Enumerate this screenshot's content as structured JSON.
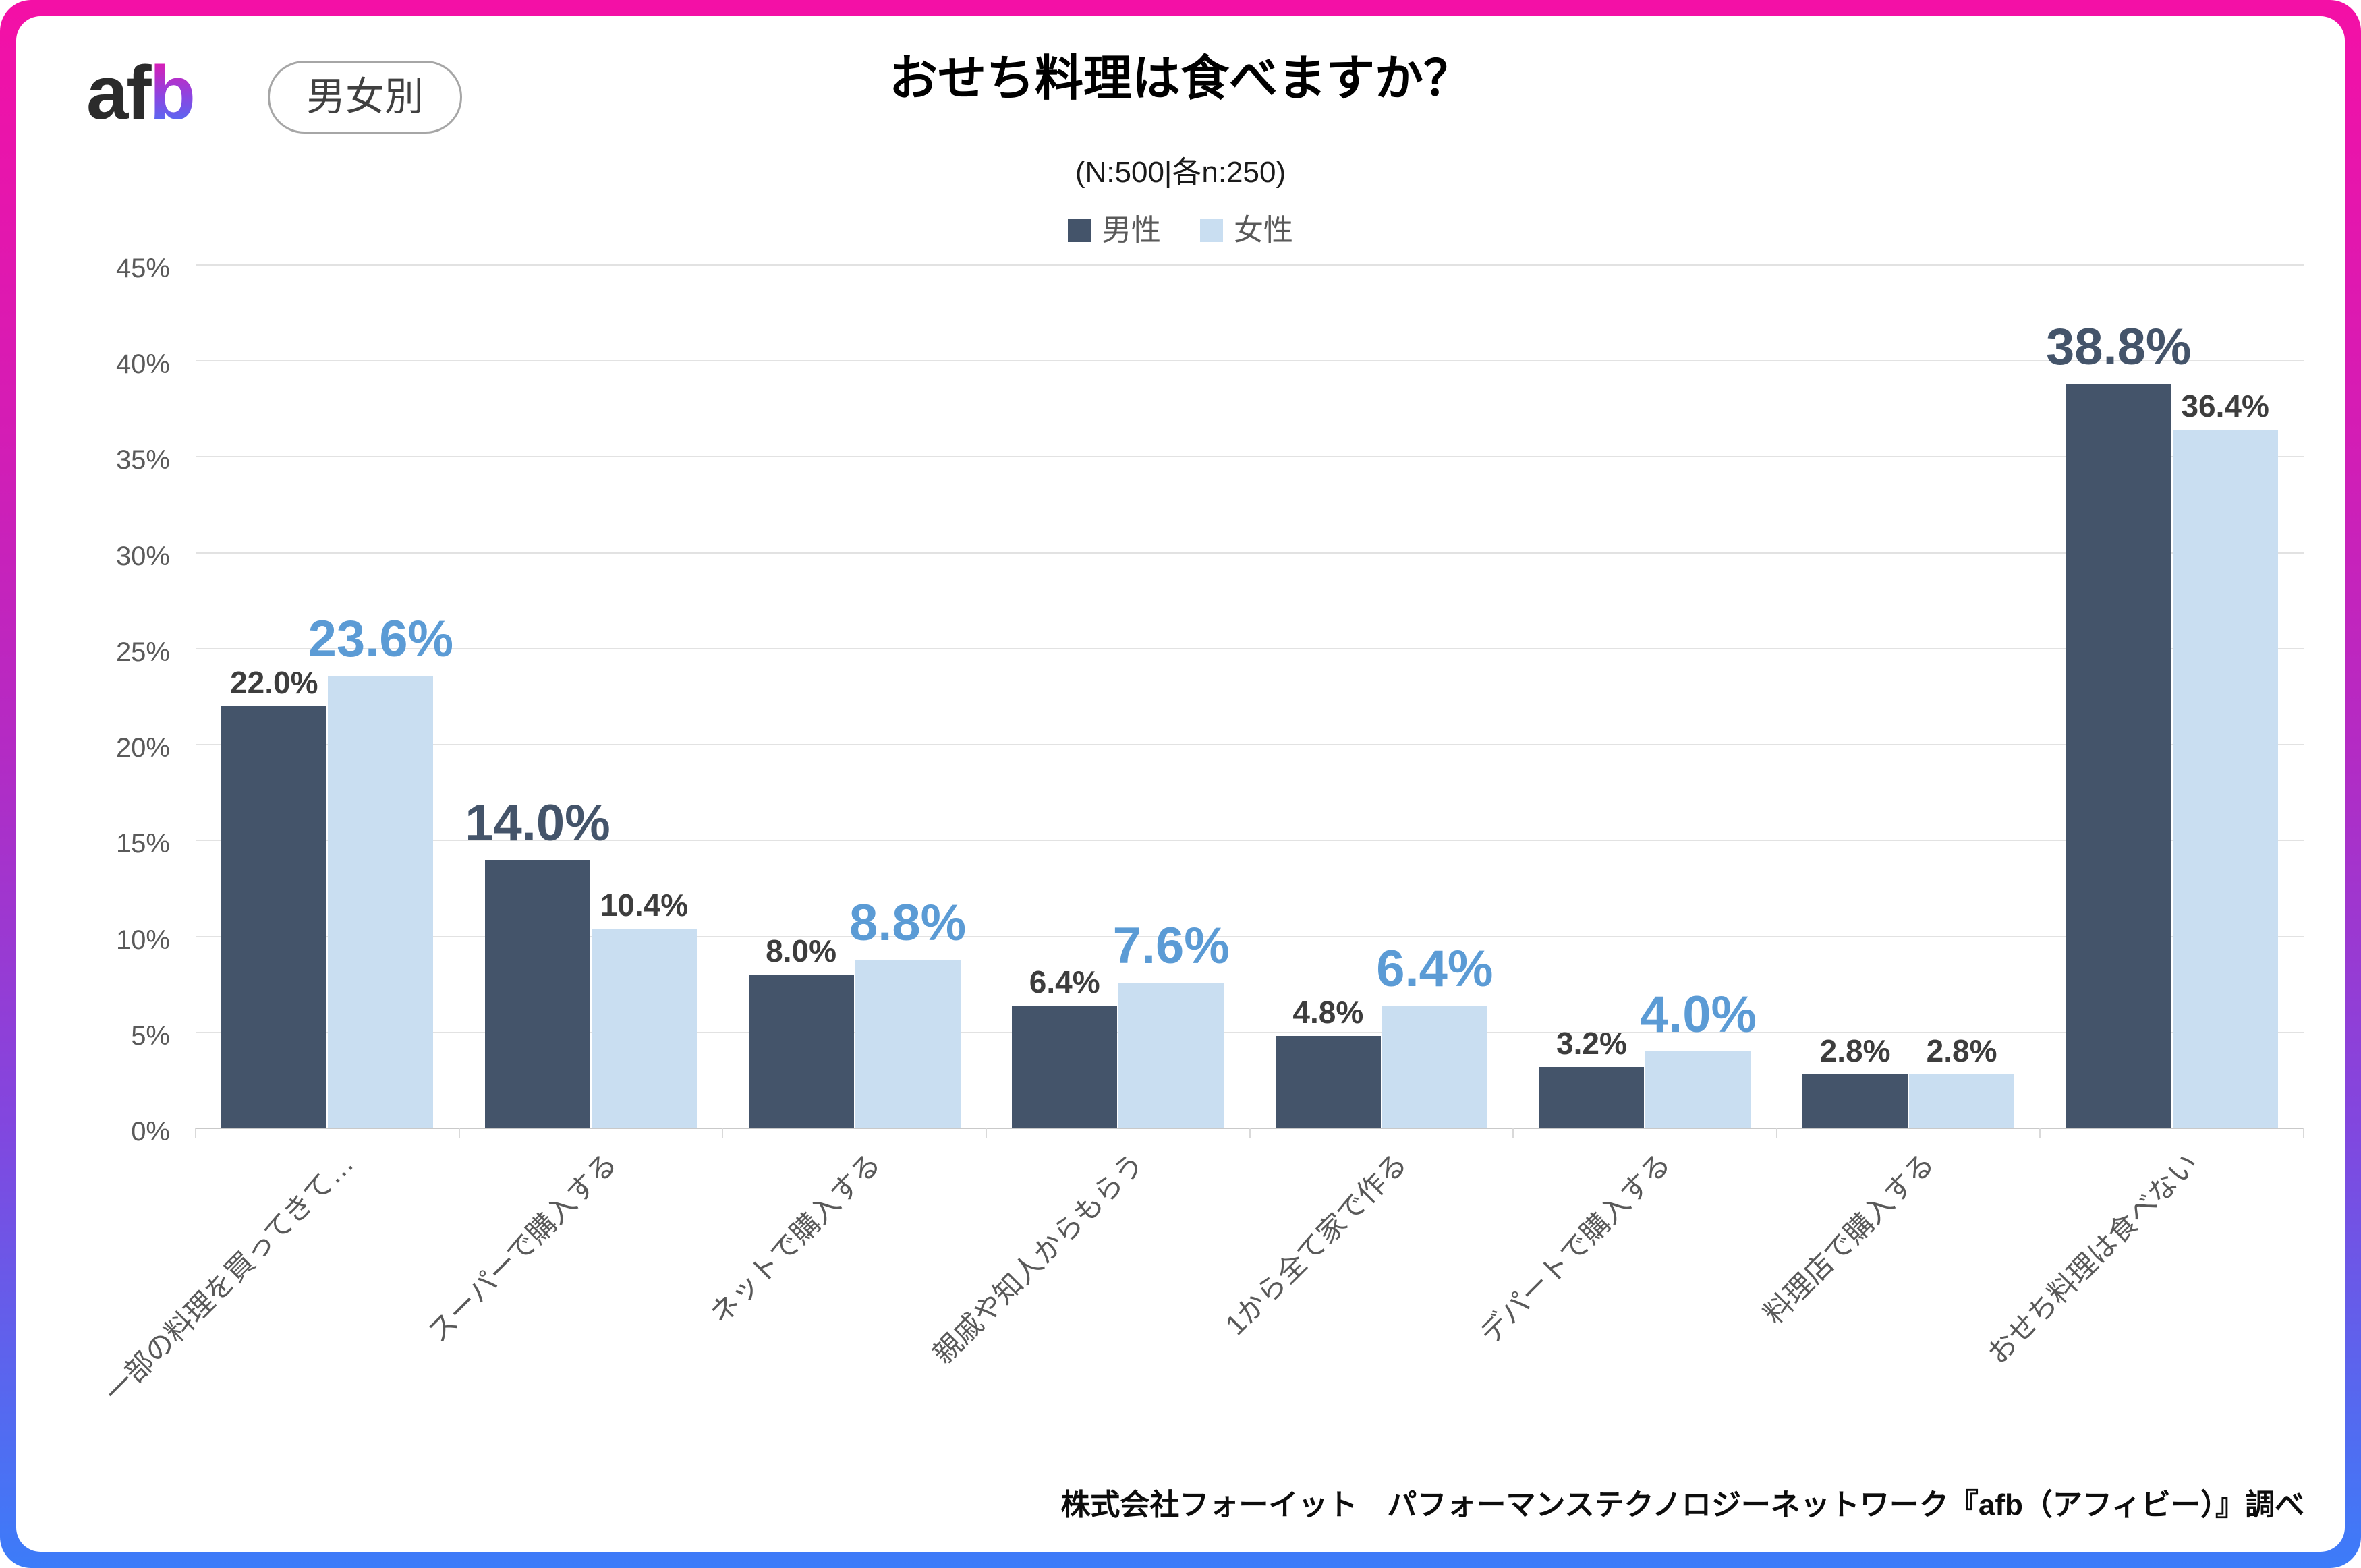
{
  "header": {
    "logo": {
      "dark": "af",
      "accent": "b"
    },
    "badge": "男女別",
    "title": "おせち料理は食べますか？",
    "subtitle": "(N:500|各n:250)"
  },
  "legend": {
    "items": [
      {
        "label": "男性",
        "color": "#44546A"
      },
      {
        "label": "女性",
        "color": "#C9DEF1"
      }
    ]
  },
  "footer": "株式会社フォーイット　パフォーマンステクノロジーネットワーク『afb（アフィビー）』調べ",
  "chart_data": {
    "type": "bar",
    "title": "おせち料理は食べますか？",
    "subtitle": "(N:500|各n:250)",
    "categories": [
      "一部の料理を買ってきて…",
      "スーパーで購入する",
      "ネットで購入する",
      "親戚や知人からもらう",
      "1から全て家で作る",
      "デパートで購入する",
      "料理店で購入する",
      "おせち料理は食べない"
    ],
    "series": [
      {
        "name": "男性",
        "color": "#44546A",
        "values": [
          22.0,
          14.0,
          8.0,
          6.4,
          4.8,
          3.2,
          2.8,
          38.8
        ]
      },
      {
        "name": "女性",
        "color": "#C9DEF1",
        "values": [
          23.6,
          10.4,
          8.8,
          7.6,
          6.4,
          4.0,
          2.8,
          36.4
        ]
      }
    ],
    "emphasized_series_per_category": [
      "女性",
      "男性",
      "女性",
      "女性",
      "女性",
      "女性",
      null,
      "男性"
    ],
    "value_label_colors": {
      "normal": "#3D3D3D",
      "男性": "#44546A",
      "女性": "#5B9BD5"
    },
    "value_suffix": "%",
    "ylim": [
      0,
      45
    ],
    "ytick_step": 5,
    "ytick_suffix": "%",
    "grid": true,
    "legend_position": "top",
    "xlabel": "",
    "ylabel": ""
  }
}
